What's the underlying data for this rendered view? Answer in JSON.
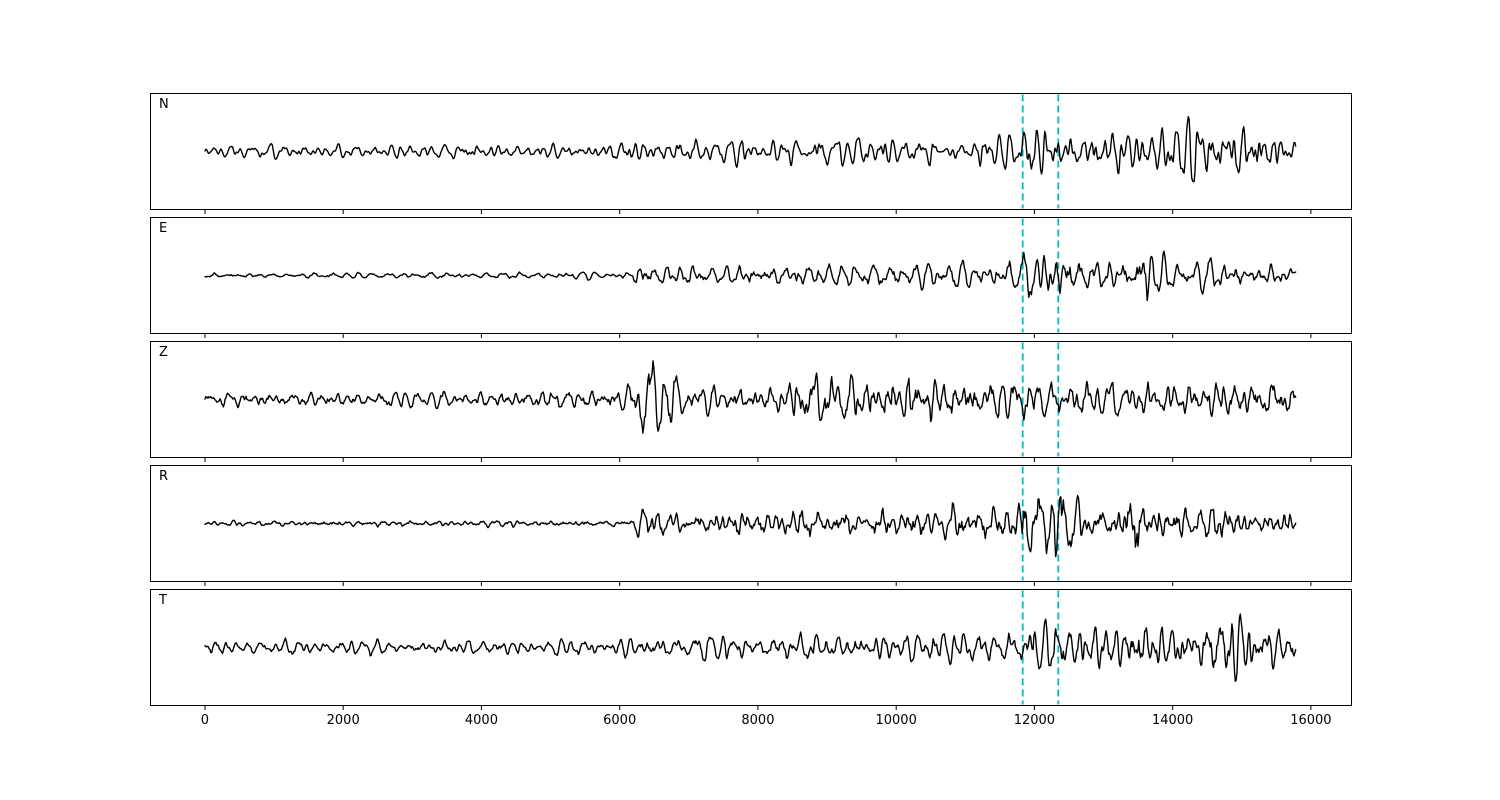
{
  "figure": {
    "background_color": "#ffffff",
    "trace_color": "#000000",
    "spine_color": "#000000",
    "marker_color": "#00bfbf",
    "title": ""
  },
  "chart_data": {
    "type": "line",
    "title": "",
    "xlabel": "",
    "ylabel": "",
    "x_ticks": [
      0,
      2000,
      4000,
      6000,
      8000,
      10000,
      12000,
      14000,
      16000
    ],
    "xlim": [
      -795,
      16580
    ],
    "n_samples": 15780,
    "y_axis": "unlabeled amplitude, no ticks",
    "grid": false,
    "legend": "none",
    "event_markers": {
      "x": [
        11830,
        12345
      ],
      "line_style": "dashed",
      "color": "#00bfbf",
      "spans": "full panel height, all panels"
    },
    "panels": [
      {
        "name": "N",
        "envelope": [
          [
            0,
            7
          ],
          [
            2000,
            7.5
          ],
          [
            4000,
            8
          ],
          [
            5600,
            8.5
          ],
          [
            6100,
            12
          ],
          [
            6600,
            13
          ],
          [
            8000,
            13.5
          ],
          [
            9000,
            14
          ],
          [
            10000,
            15
          ],
          [
            11000,
            15
          ],
          [
            11750,
            16
          ],
          [
            11900,
            28
          ],
          [
            12150,
            33
          ],
          [
            12500,
            25
          ],
          [
            13000,
            24
          ],
          [
            13400,
            38
          ],
          [
            13700,
            26
          ],
          [
            14200,
            28
          ],
          [
            14750,
            47
          ],
          [
            15100,
            33
          ],
          [
            15500,
            27
          ],
          [
            15780,
            20
          ]
        ]
      },
      {
        "name": "E",
        "envelope": [
          [
            0,
            2.5
          ],
          [
            3000,
            3
          ],
          [
            6150,
            3
          ],
          [
            6350,
            15
          ],
          [
            6600,
            11
          ],
          [
            7000,
            10
          ],
          [
            8000,
            11
          ],
          [
            9000,
            13
          ],
          [
            10000,
            13
          ],
          [
            11000,
            14
          ],
          [
            11750,
            14
          ],
          [
            11950,
            32
          ],
          [
            12250,
            35
          ],
          [
            12500,
            28
          ],
          [
            12750,
            18
          ],
          [
            13100,
            15
          ],
          [
            13450,
            16
          ],
          [
            13580,
            43
          ],
          [
            13750,
            19
          ],
          [
            14200,
            14
          ],
          [
            15000,
            13
          ],
          [
            15780,
            11
          ]
        ]
      },
      {
        "name": "Z",
        "envelope": [
          [
            0,
            7
          ],
          [
            2000,
            8
          ],
          [
            4000,
            8.5
          ],
          [
            6100,
            9
          ],
          [
            6350,
            44
          ],
          [
            6600,
            38
          ],
          [
            6850,
            17
          ],
          [
            7400,
            16
          ],
          [
            8200,
            19
          ],
          [
            8700,
            30
          ],
          [
            9100,
            27
          ],
          [
            9600,
            22
          ],
          [
            10200,
            27
          ],
          [
            10800,
            23
          ],
          [
            11400,
            20
          ],
          [
            12000,
            21
          ],
          [
            12600,
            23
          ],
          [
            13200,
            20
          ],
          [
            14000,
            21
          ],
          [
            14800,
            18
          ],
          [
            15780,
            17
          ]
        ]
      },
      {
        "name": "R",
        "envelope": [
          [
            0,
            2.5
          ],
          [
            3000,
            3
          ],
          [
            6150,
            3
          ],
          [
            6350,
            17
          ],
          [
            6600,
            12
          ],
          [
            7000,
            11
          ],
          [
            8000,
            12
          ],
          [
            9000,
            14
          ],
          [
            9800,
            16
          ],
          [
            10500,
            15
          ],
          [
            11200,
            15
          ],
          [
            11750,
            17
          ],
          [
            11950,
            39
          ],
          [
            12150,
            40
          ],
          [
            12450,
            30
          ],
          [
            12700,
            20
          ],
          [
            13100,
            17
          ],
          [
            13450,
            39
          ],
          [
            13650,
            20
          ],
          [
            14200,
            16
          ],
          [
            15000,
            14
          ],
          [
            15780,
            12
          ]
        ]
      },
      {
        "name": "T",
        "envelope": [
          [
            0,
            6.5
          ],
          [
            2000,
            7
          ],
          [
            4000,
            7.5
          ],
          [
            5800,
            8
          ],
          [
            6300,
            11
          ],
          [
            7000,
            12
          ],
          [
            8000,
            13
          ],
          [
            9000,
            14
          ],
          [
            10000,
            15
          ],
          [
            11000,
            16
          ],
          [
            11750,
            17
          ],
          [
            11950,
            27
          ],
          [
            12300,
            29
          ],
          [
            12800,
            26
          ],
          [
            13200,
            25
          ],
          [
            13560,
            41
          ],
          [
            13800,
            27
          ],
          [
            14300,
            25
          ],
          [
            14900,
            43
          ],
          [
            15200,
            27
          ],
          [
            15600,
            21
          ],
          [
            15780,
            18
          ]
        ]
      }
    ]
  }
}
